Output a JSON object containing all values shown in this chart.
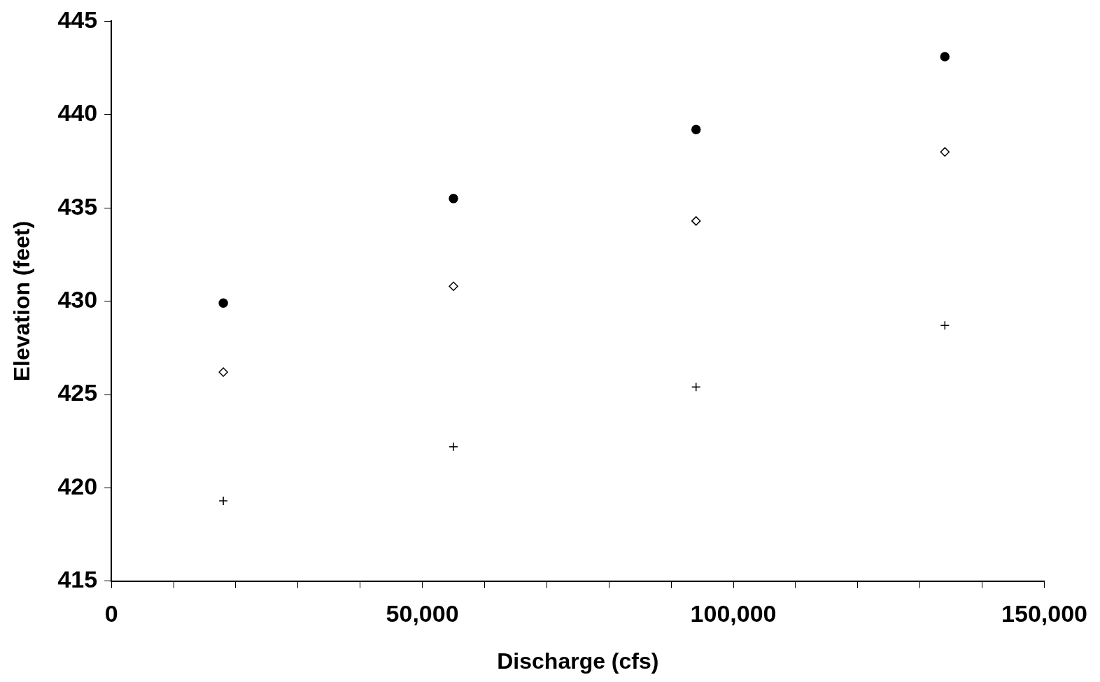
{
  "chart_data": {
    "type": "scatter",
    "xlabel": "Discharge (cfs)",
    "ylabel": "Elevation (feet)",
    "xlim": [
      0,
      150000
    ],
    "xticks": [
      0,
      {
        "value": 10000,
        "label": null
      },
      {
        "value": 20000,
        "label": null
      },
      {
        "value": 30000,
        "label": null
      },
      {
        "value": 40000,
        "label": null
      },
      {
        "value": 50000,
        "label": "50,000"
      },
      {
        "value": 60000,
        "label": null
      },
      {
        "value": 70000,
        "label": null
      },
      {
        "value": 80000,
        "label": null
      },
      {
        "value": 90000,
        "label": null
      },
      {
        "value": 100000,
        "label": "100,000"
      },
      {
        "value": 110000,
        "label": null
      },
      {
        "value": 120000,
        "label": null
      },
      {
        "value": 130000,
        "label": null
      },
      {
        "value": 140000,
        "label": null
      },
      {
        "value": 150000,
        "label": "150,000"
      }
    ],
    "ylim": [
      415,
      445
    ],
    "yticks": [
      415,
      420,
      425,
      430,
      435,
      440,
      445
    ],
    "grid": false,
    "legend": false,
    "series": [
      {
        "color": "#000000",
        "marker": "circle",
        "x": [
          18000,
          55000,
          94000,
          134000
        ],
        "values": [
          429.9,
          435.5,
          439.2,
          443.1
        ]
      },
      {
        "color": "#000000",
        "marker": "diamond",
        "x": [
          18000,
          55000,
          94000,
          134000
        ],
        "values": [
          426.2,
          430.8,
          434.3,
          438.0
        ]
      },
      {
        "color": "#000000",
        "marker": "cross",
        "x": [
          18000,
          55000,
          94000,
          134000
        ],
        "values": [
          419.3,
          422.2,
          425.4,
          428.7
        ]
      }
    ]
  }
}
